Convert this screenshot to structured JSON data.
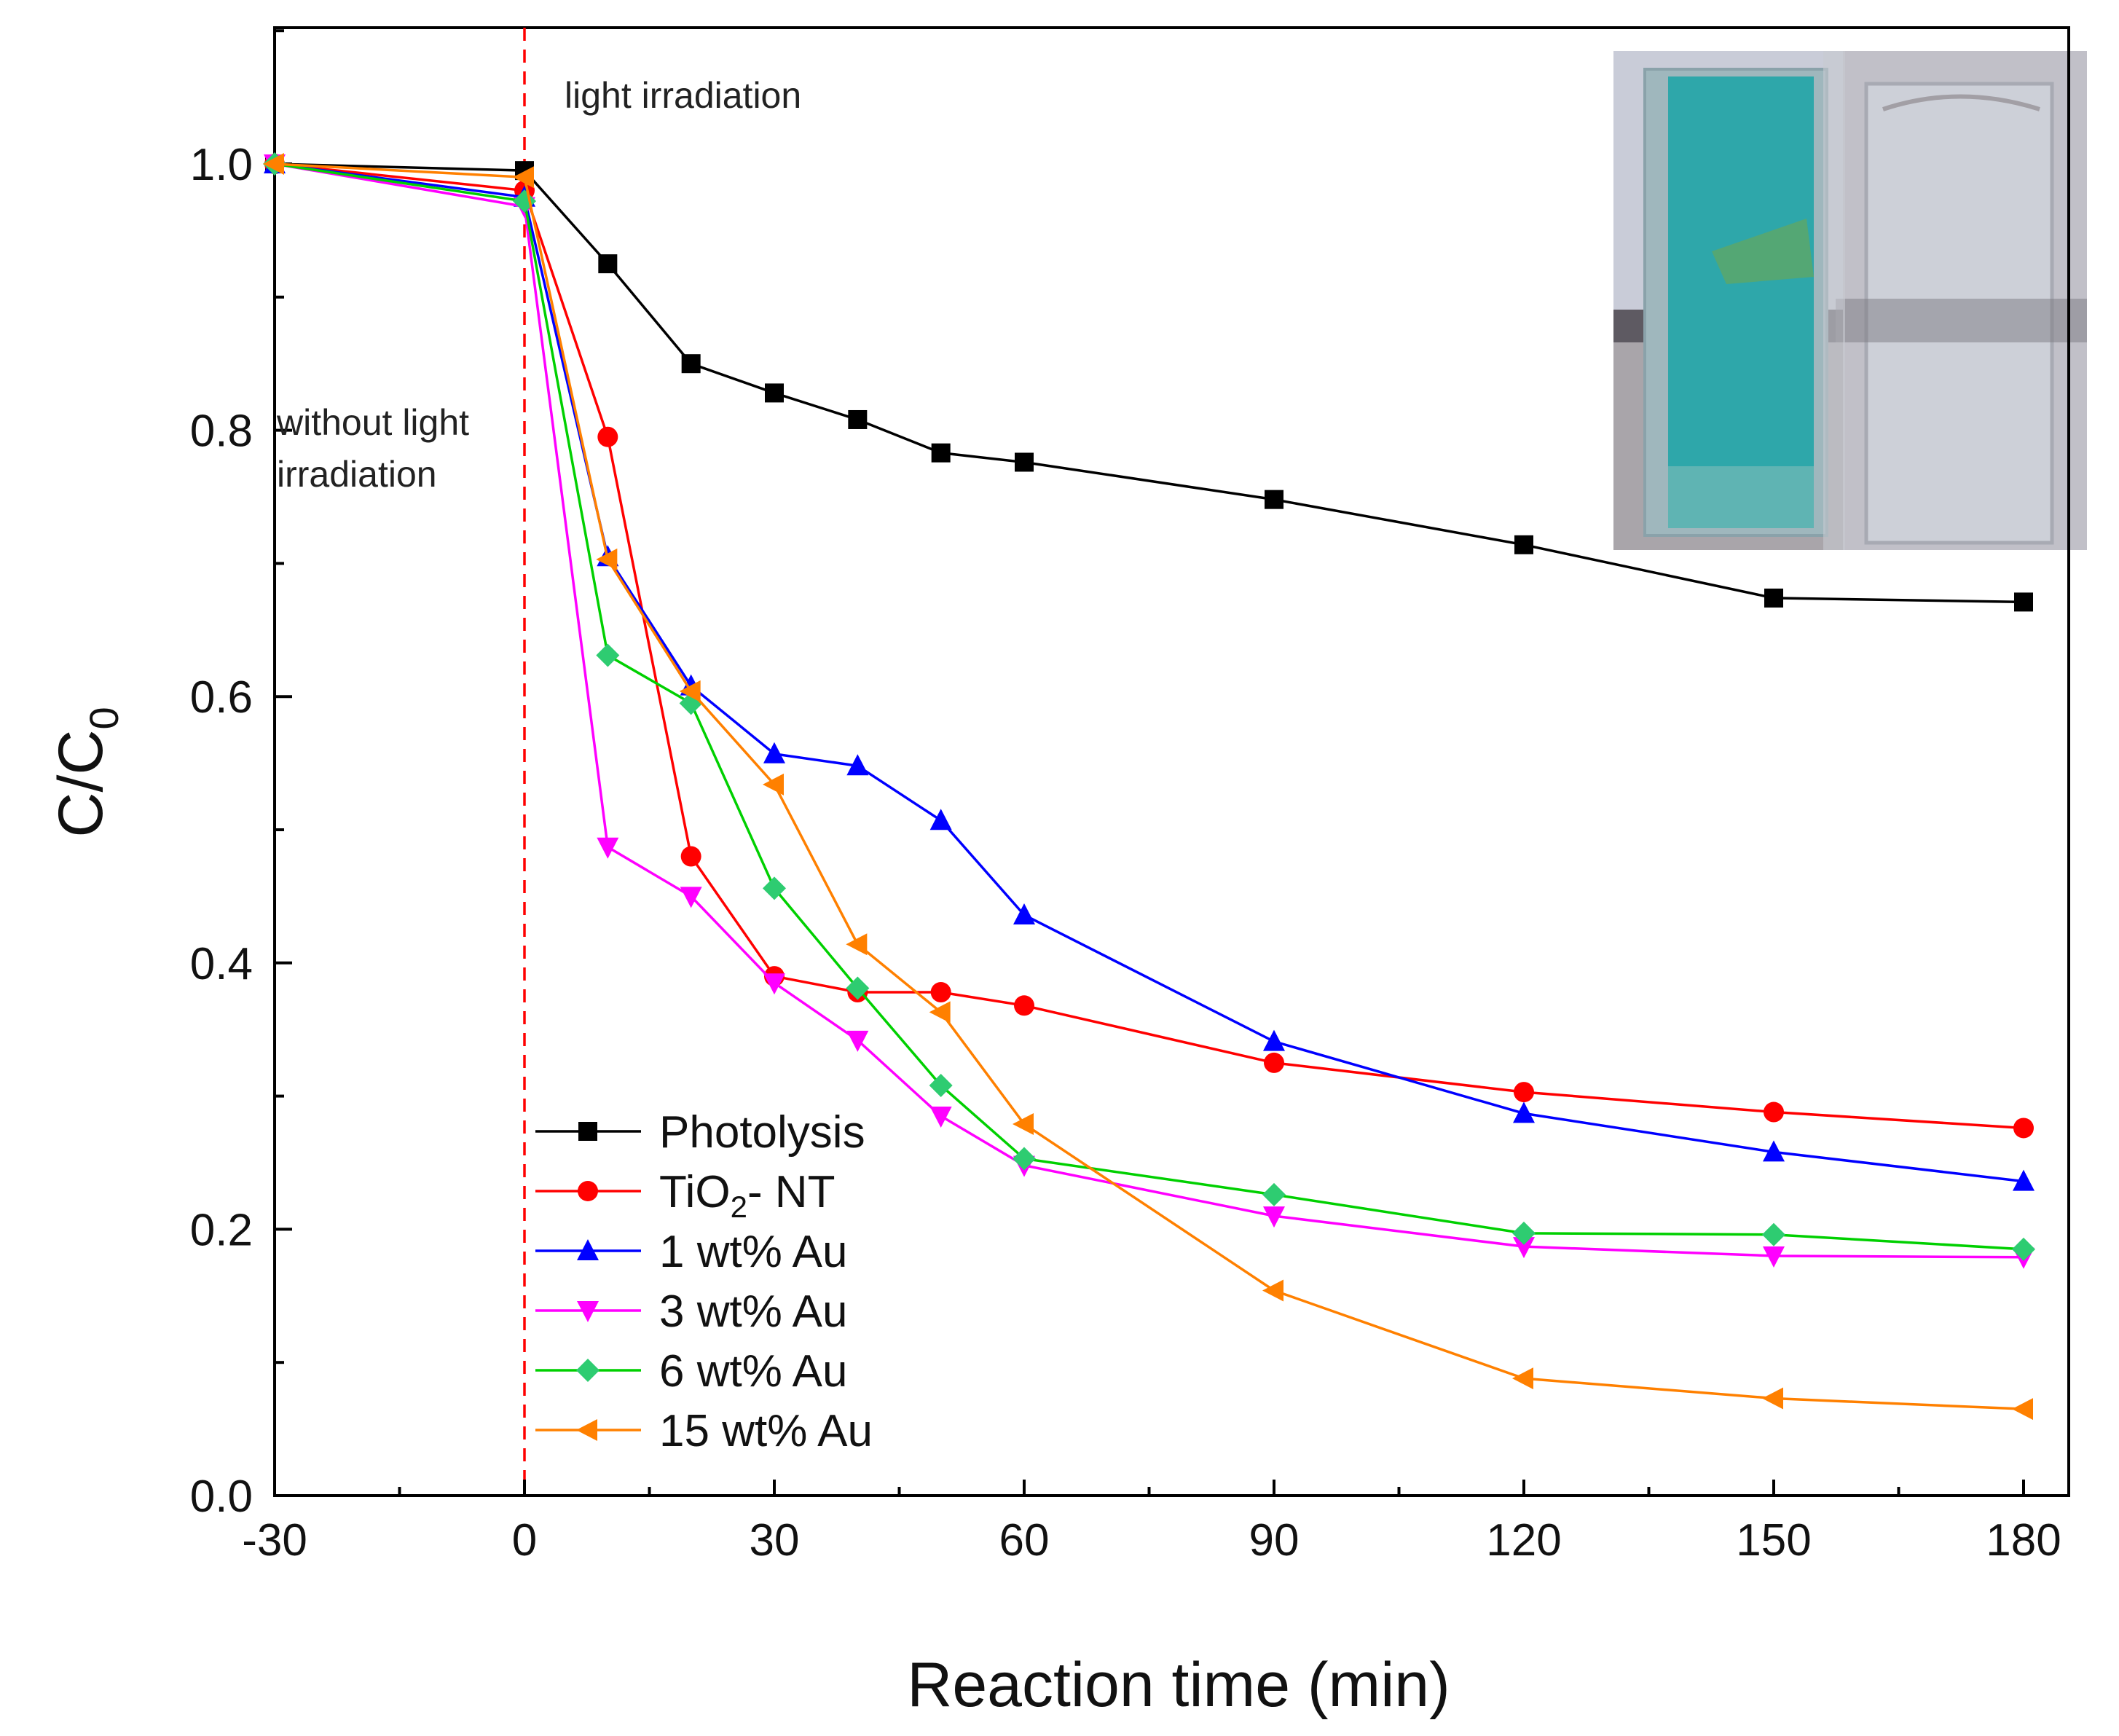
{
  "chart_data": {
    "type": "line",
    "xlabel": "Reaction time (min)",
    "ylabel": "C/C",
    "ylabel_subscript": "0",
    "xlim": [
      -30,
      182
    ],
    "ylim": [
      0.0,
      1.1
    ],
    "xticks": [
      -30,
      0,
      30,
      60,
      90,
      120,
      150,
      180
    ],
    "yticks": [
      0.0,
      0.2,
      0.4,
      0.6,
      0.8,
      1.0
    ],
    "ytick_labels": [
      "0.0",
      "0.2",
      "0.4",
      "0.6",
      "0.8",
      "1.0"
    ],
    "grid": false,
    "legend_position": "bottom-left",
    "annotations": {
      "light": "light irradiation",
      "dark_line1": "without light",
      "dark_line2": "irradiation"
    },
    "inset_photo": "two cuvettes: blue-green dye solution (left) and decolorized solution (right)",
    "series": [
      {
        "name": "Photolysis",
        "color": "#000000",
        "marker": "square",
        "x": [
          -30,
          0,
          10,
          20,
          30,
          40,
          50,
          60,
          90,
          120,
          150,
          180
        ],
        "y": [
          1.0,
          0.995,
          0.925,
          0.85,
          0.828,
          0.808,
          0.783,
          0.776,
          0.748,
          0.714,
          0.674,
          0.671
        ]
      },
      {
        "name": "TiO",
        "name_sub": "2",
        "name_suffix": "- NT",
        "color": "#ff0000",
        "marker": "circle",
        "x": [
          -30,
          0,
          10,
          20,
          30,
          40,
          50,
          60,
          90,
          120,
          150,
          180
        ],
        "y": [
          1.0,
          0.98,
          0.795,
          0.48,
          0.39,
          0.378,
          0.378,
          0.368,
          0.325,
          0.303,
          0.288,
          0.276
        ]
      },
      {
        "name": "1 wt% Au",
        "color": "#0000ff",
        "marker": "triangle-up",
        "x": [
          -30,
          0,
          10,
          20,
          30,
          40,
          50,
          60,
          90,
          120,
          150,
          180
        ],
        "y": [
          1.0,
          0.975,
          0.705,
          0.608,
          0.557,
          0.548,
          0.507,
          0.436,
          0.341,
          0.287,
          0.258,
          0.236
        ]
      },
      {
        "name": "3 wt% Au",
        "color": "#ff00ff",
        "marker": "triangle-down",
        "x": [
          -30,
          0,
          10,
          20,
          30,
          40,
          50,
          60,
          90,
          120,
          150,
          180
        ],
        "y": [
          1.0,
          0.968,
          0.487,
          0.45,
          0.385,
          0.342,
          0.285,
          0.248,
          0.21,
          0.187,
          0.18,
          0.179
        ]
      },
      {
        "name": "6 wt% Au",
        "color": "#00d000",
        "marker": "diamond",
        "marker_color": "#2ecc71",
        "x": [
          -30,
          0,
          10,
          20,
          30,
          40,
          50,
          60,
          90,
          120,
          150,
          180
        ],
        "y": [
          1.0,
          0.972,
          0.631,
          0.595,
          0.456,
          0.381,
          0.308,
          0.253,
          0.226,
          0.197,
          0.196,
          0.185
        ]
      },
      {
        "name": "15 wt% Au",
        "color": "#ff8000",
        "marker": "triangle-left",
        "x": [
          -30,
          0,
          10,
          20,
          30,
          40,
          50,
          60,
          90,
          120,
          150,
          180
        ],
        "y": [
          1.0,
          0.99,
          0.703,
          0.604,
          0.534,
          0.414,
          0.363,
          0.279,
          0.154,
          0.088,
          0.073,
          0.065
        ]
      }
    ]
  }
}
